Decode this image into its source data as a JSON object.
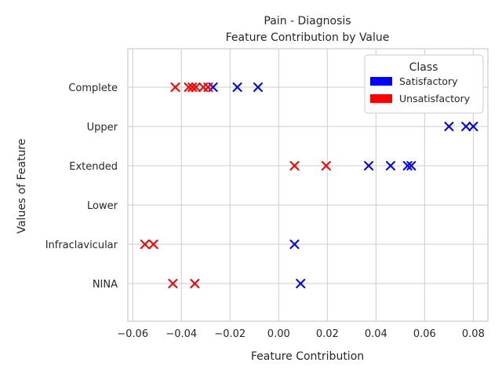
{
  "chart_data": {
    "type": "scatter",
    "title": "Pain - Diagnosis",
    "subtitle": "Feature Contribution by Value",
    "xlabel": "Feature Contribution",
    "ylabel": "Values of Feature",
    "xlim": [
      -0.062,
      0.086
    ],
    "x_ticks": [
      "−0.06",
      "−0.04",
      "−0.02",
      "0.00",
      "0.02",
      "0.04",
      "0.06",
      "0.08"
    ],
    "x_tick_values": [
      -0.06,
      -0.04,
      -0.02,
      0.0,
      0.02,
      0.04,
      0.06,
      0.08
    ],
    "categories": [
      "Complete",
      "Upper",
      "Extended",
      "Lower",
      "Infraclavicular",
      "NINA"
    ],
    "grid": true,
    "legend": {
      "title": "Class",
      "placement": "top-right"
    },
    "marker": "x",
    "series": [
      {
        "name": "Satisfactory",
        "color": "#0000ff",
        "points": [
          {
            "x": -0.027,
            "y": "Complete"
          },
          {
            "x": -0.017,
            "y": "Complete"
          },
          {
            "x": -0.0085,
            "y": "Complete"
          },
          {
            "x": 0.07,
            "y": "Upper"
          },
          {
            "x": 0.077,
            "y": "Upper"
          },
          {
            "x": 0.08,
            "y": "Upper"
          },
          {
            "x": 0.037,
            "y": "Extended"
          },
          {
            "x": 0.046,
            "y": "Extended"
          },
          {
            "x": 0.053,
            "y": "Extended"
          },
          {
            "x": 0.0545,
            "y": "Extended"
          },
          {
            "x": 0.0065,
            "y": "Infraclavicular"
          },
          {
            "x": 0.009,
            "y": "NINA"
          }
        ]
      },
      {
        "name": "Unsatisfactory",
        "color": "#ff0000",
        "points": [
          {
            "x": -0.0425,
            "y": "Complete"
          },
          {
            "x": -0.037,
            "y": "Complete"
          },
          {
            "x": -0.0355,
            "y": "Complete"
          },
          {
            "x": -0.034,
            "y": "Complete"
          },
          {
            "x": -0.031,
            "y": "Complete"
          },
          {
            "x": -0.029,
            "y": "Complete"
          },
          {
            "x": 0.0065,
            "y": "Extended"
          },
          {
            "x": 0.0195,
            "y": "Extended"
          },
          {
            "x": -0.055,
            "y": "Infraclavicular"
          },
          {
            "x": -0.0515,
            "y": "Infraclavicular"
          },
          {
            "x": -0.0435,
            "y": "NINA"
          },
          {
            "x": -0.0345,
            "y": "NINA"
          }
        ]
      }
    ]
  }
}
